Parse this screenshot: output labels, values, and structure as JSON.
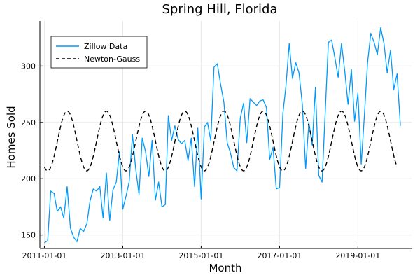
{
  "chart_data": {
    "type": "line",
    "title": "Spring Hill, Florida",
    "xlabel": "Month",
    "ylabel": "Homes Sold",
    "x_start": "2011-01",
    "x_ticks": [
      "2011-01-01",
      "2013-01-01",
      "2015-01-01",
      "2017-01-01",
      "2019-01-01"
    ],
    "xlim": [
      "2010-11-20",
      "2020-05-15"
    ],
    "y_ticks": [
      150,
      200,
      250,
      300
    ],
    "ylim": [
      138,
      340
    ],
    "grid": true,
    "legend_position": "top-left",
    "series": [
      {
        "name": "Zillow Data",
        "style": "solid",
        "color": "#009AFA",
        "values": [
          143,
          145,
          189,
          187,
          171,
          175,
          165,
          193,
          156,
          148,
          144,
          156,
          153,
          160,
          180,
          191,
          189,
          193,
          165,
          205,
          163,
          190,
          197,
          224,
          173,
          185,
          197,
          239,
          209,
          186,
          236,
          224,
          202,
          234,
          181,
          197,
          175,
          177,
          256,
          234,
          247,
          235,
          231,
          234,
          216,
          236,
          193,
          245,
          182,
          246,
          250,
          234,
          299,
          302,
          284,
          268,
          232,
          223,
          210,
          207,
          254,
          267,
          232,
          271,
          268,
          265,
          269,
          270,
          263,
          217,
          228,
          191,
          192,
          258,
          282,
          320,
          289,
          303,
          294,
          266,
          209,
          250,
          230,
          281,
          203,
          197,
          256,
          321,
          323,
          307,
          290,
          320,
          295,
          266,
          297,
          251,
          276,
          213,
          254,
          303,
          329,
          321,
          310,
          334,
          320,
          294,
          314,
          279,
          293,
          247
        ],
        "x_indexed_from": "2011-01"
      },
      {
        "name": "Newton-Gauss",
        "style": "dashed",
        "color": "#000000",
        "mean": 233.5,
        "amplitude": 26.5,
        "period_months": 12,
        "peak_month_index": 7,
        "months_count": 108
      }
    ]
  }
}
